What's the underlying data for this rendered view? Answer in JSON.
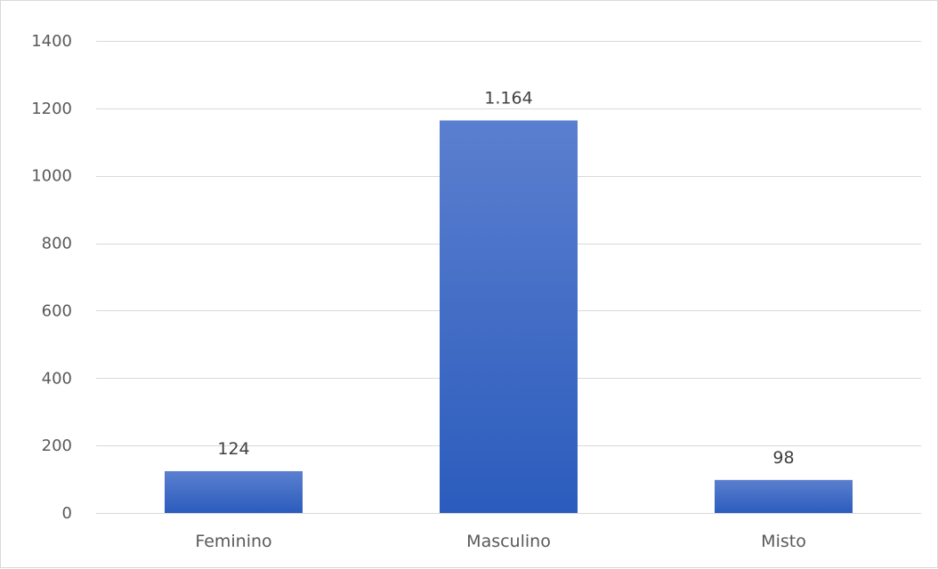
{
  "chart_data": {
    "type": "bar",
    "categories": [
      "Feminino",
      "Masculino",
      "Misto"
    ],
    "values": [
      124,
      1164,
      98
    ],
    "data_labels": [
      "124",
      "1.164",
      "98"
    ],
    "y_ticks": [
      0,
      200,
      400,
      600,
      800,
      1000,
      1200,
      1400
    ],
    "ylim": [
      0,
      1400
    ],
    "grid": true,
    "legend": "none",
    "title": "",
    "xlabel": "",
    "ylabel": "",
    "colors": {
      "bar_top": "#5b7fcf",
      "bar_bottom": "#2b5cbd",
      "gridline": "#d9d9d9",
      "text": "#595959"
    }
  }
}
